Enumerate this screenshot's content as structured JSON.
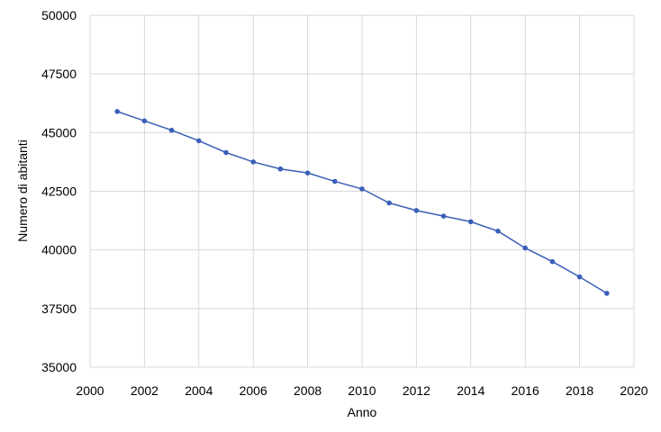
{
  "chart_data": {
    "type": "line",
    "title": "",
    "xlabel": "Anno",
    "ylabel": "Numero di abitanti",
    "xlim": [
      2000,
      2020
    ],
    "ylim": [
      35000,
      50000
    ],
    "x_ticks": [
      2000,
      2002,
      2004,
      2006,
      2008,
      2010,
      2012,
      2014,
      2016,
      2018,
      2020
    ],
    "y_ticks": [
      35000,
      37500,
      40000,
      42500,
      45000,
      47500,
      50000
    ],
    "grid": true,
    "legend": "none",
    "color": "#3a5fb8",
    "series": [
      {
        "x": [
          2001,
          2002,
          2003,
          2004,
          2005,
          2006,
          2007,
          2008,
          2009,
          2010,
          2011,
          2012,
          2013,
          2014,
          2015,
          2016,
          2017,
          2018,
          2019
        ],
        "y": [
          45900,
          45500,
          45100,
          44650,
          44150,
          43750,
          43450,
          43280,
          42920,
          42600,
          42000,
          41680,
          41440,
          41200,
          40800,
          40080,
          39500,
          38850,
          38150
        ]
      }
    ]
  }
}
